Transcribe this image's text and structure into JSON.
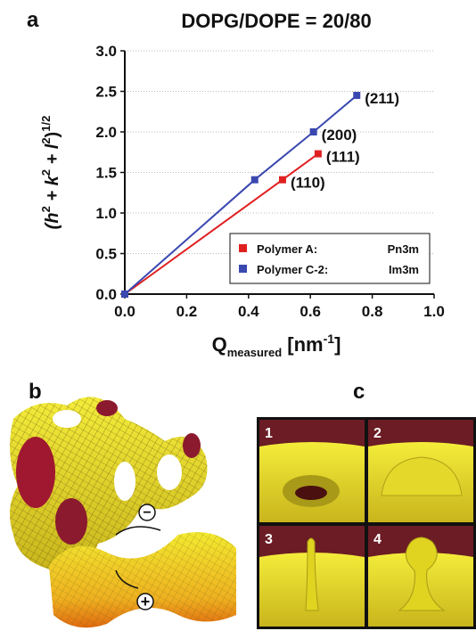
{
  "chart_data": {
    "type": "line",
    "panel": "a",
    "title": "DOPG/DOPE = 20/80",
    "xlabel": [
      "Q",
      "measured",
      " [nm",
      "-1",
      "]"
    ],
    "ylabel": [
      "(h",
      "2",
      " + k",
      "2",
      " + l",
      "2",
      ")",
      "1/2"
    ],
    "xlim": [
      0,
      1.0
    ],
    "ylim": [
      0,
      3.0
    ],
    "xticks": [
      {
        "value": 0,
        "label": "0.0"
      },
      {
        "value": 0.2,
        "label": "0.2"
      },
      {
        "value": 0.4,
        "label": "0.4"
      },
      {
        "value": 0.6,
        "label": "0.6"
      },
      {
        "value": 0.8,
        "label": "0.8"
      },
      {
        "value": 1.0,
        "label": "1.0"
      }
    ],
    "yticks": [
      {
        "value": 0,
        "label": "0.0"
      },
      {
        "value": 0.5,
        "label": "0.5"
      },
      {
        "value": 1.0,
        "label": "1.0"
      },
      {
        "value": 1.5,
        "label": "1.5"
      },
      {
        "value": 2.0,
        "label": "2.0"
      },
      {
        "value": 2.5,
        "label": "2.5"
      },
      {
        "value": 3.0,
        "label": "3.0"
      }
    ],
    "grid": true,
    "legend": "lower right",
    "series": [
      {
        "name": "Polymer A:",
        "phase": "Pn3m",
        "color": "#e02020",
        "x": [
          0,
          0.51,
          0.625
        ],
        "values": [
          0,
          1.41,
          1.73
        ],
        "point_labels": [
          null,
          "(110)",
          "(111)"
        ]
      },
      {
        "name": "Polymer C-2:",
        "phase": "Im3m",
        "color": "#3a48b0",
        "x": [
          0,
          0.42,
          0.61,
          0.75
        ],
        "values": [
          0,
          1.41,
          2.0,
          2.45
        ],
        "point_labels": [
          null,
          null,
          "(200)",
          "(211)"
        ]
      }
    ]
  },
  "panels": [
    "b",
    "c"
  ],
  "curvature_signs": [
    "−",
    "+"
  ],
  "tiles": [
    "1",
    "2",
    "3",
    "4"
  ]
}
